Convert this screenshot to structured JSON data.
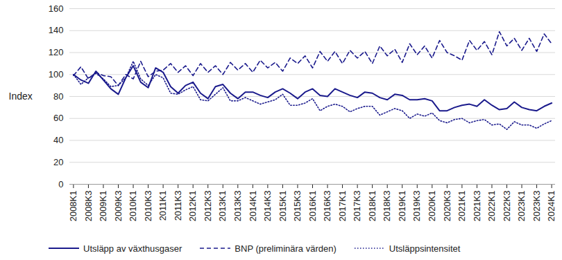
{
  "chart_data": {
    "type": "line",
    "y_label": "Index",
    "categories": [
      "2008K1",
      null,
      "2008K3",
      null,
      "2009K1",
      null,
      "2009K3",
      null,
      "2010K1",
      null,
      "2010K3",
      null,
      "2011K1",
      null,
      "2011K3",
      null,
      "2012K1",
      null,
      "2012K3",
      null,
      "2013K1",
      null,
      "2013K3",
      null,
      "2014K1",
      null,
      "2014K3",
      null,
      "2015K1",
      null,
      "2015K3",
      null,
      "2016K1",
      null,
      "2016K3",
      null,
      "2017K1",
      null,
      "2017K3",
      null,
      "2018K1",
      null,
      "2018K3",
      null,
      "2019K1",
      null,
      "2019K3",
      null,
      "2020K1",
      null,
      "2020K3",
      null,
      "2021K1",
      null,
      "2021K3",
      null,
      "2022K1",
      null,
      "2022K3",
      null,
      "2023K1",
      null,
      "2023K3",
      null,
      "2024K1"
    ],
    "ylim": [
      0,
      160
    ],
    "yticks": [
      0,
      20,
      40,
      60,
      80,
      100,
      120,
      140,
      160
    ],
    "grid": true,
    "legend": "bottom",
    "series": [
      {
        "name": "Utsläpp av växthusgaser",
        "color": "#1a1a8c",
        "line_style": "solid",
        "values": [
          100,
          95,
          92,
          103,
          95,
          87,
          82,
          97,
          108,
          93,
          88,
          106,
          102,
          89,
          83,
          90,
          93,
          83,
          78,
          89,
          91,
          83,
          78,
          84,
          84,
          81,
          79,
          84,
          87,
          83,
          78,
          84,
          87,
          81,
          80,
          87,
          84,
          81,
          79,
          84,
          83,
          79,
          77,
          82,
          81,
          77,
          77,
          78,
          76,
          67,
          67,
          70,
          72,
          73,
          71,
          77,
          72,
          68,
          69,
          75,
          70,
          68,
          67,
          71,
          74
        ]
      },
      {
        "name": "BNP (preliminära värden)",
        "color": "#1a1a8c",
        "line_style": "dashed",
        "values": [
          99,
          107,
          96,
          102,
          99,
          98,
          90,
          100,
          96,
          112,
          98,
          103,
          104,
          110,
          102,
          108,
          99,
          110,
          102,
          108,
          100,
          111,
          104,
          110,
          102,
          113,
          106,
          111,
          103,
          115,
          110,
          117,
          106,
          121,
          112,
          121,
          110,
          122,
          115,
          121,
          110,
          126,
          117,
          123,
          111,
          128,
          118,
          126,
          115,
          131,
          120,
          117,
          113,
          131,
          122,
          130,
          118,
          139,
          126,
          133,
          122,
          133,
          121,
          137,
          128
        ]
      },
      {
        "name": "Utsläppsintensitet",
        "color": "#1a1a8c",
        "line_style": "dotted",
        "values": [
          100,
          91,
          97,
          101,
          96,
          89,
          90,
          97,
          112,
          96,
          90,
          100,
          97,
          83,
          82,
          86,
          89,
          77,
          76,
          82,
          88,
          76,
          76,
          79,
          76,
          73,
          75,
          77,
          82,
          72,
          72,
          74,
          78,
          67,
          71,
          73,
          71,
          66,
          69,
          71,
          71,
          63,
          66,
          69,
          67,
          60,
          64,
          62,
          65,
          58,
          56,
          59,
          60,
          56,
          58,
          59,
          54,
          55,
          50,
          57,
          54,
          54,
          51,
          55,
          58
        ]
      }
    ]
  }
}
